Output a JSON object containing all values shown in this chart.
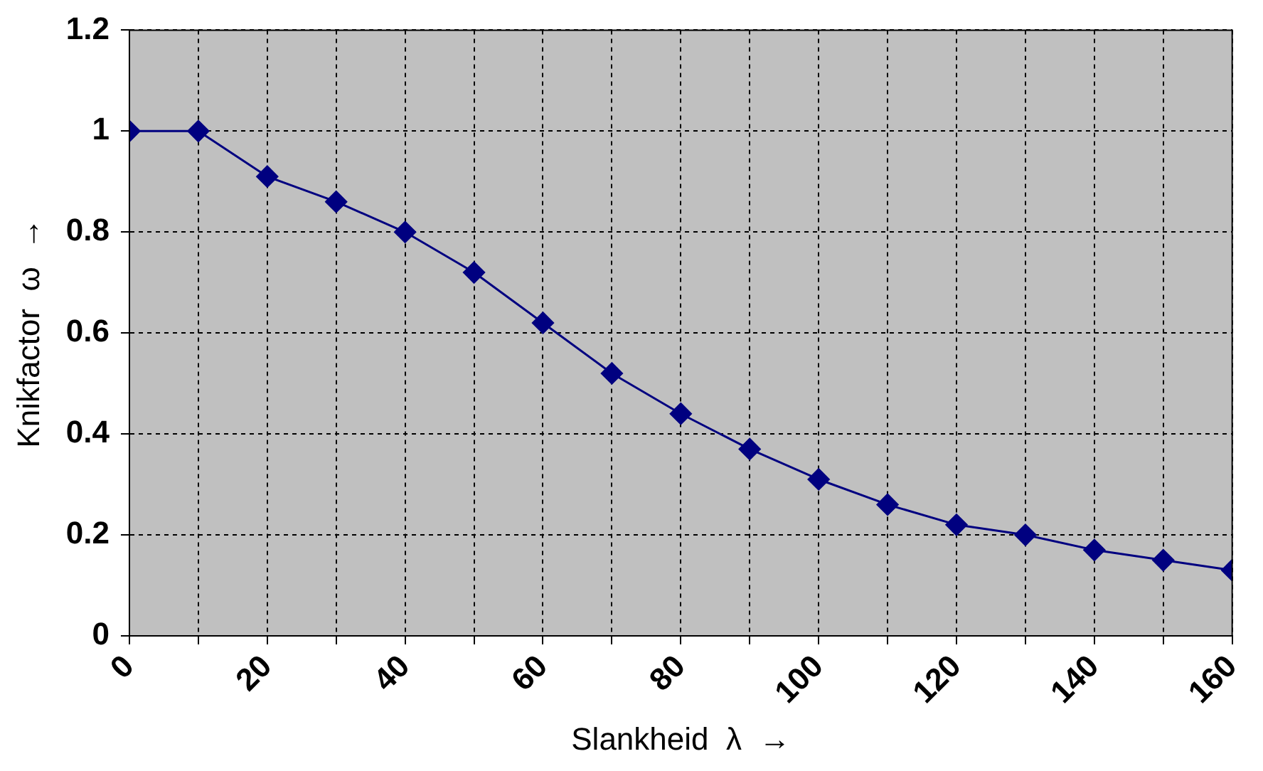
{
  "chart_data": {
    "type": "line",
    "xlabel": "Slankheid  λ  →",
    "ylabel": "Knikfactor  ω  →",
    "x": [
      0,
      10,
      20,
      30,
      40,
      50,
      60,
      70,
      80,
      90,
      100,
      110,
      120,
      130,
      140,
      150,
      160
    ],
    "series": [
      {
        "color": "#000080",
        "values": [
          1.0,
          1.0,
          0.91,
          0.86,
          0.8,
          0.72,
          0.62,
          0.52,
          0.44,
          0.37,
          0.31,
          0.26,
          0.22,
          0.2,
          0.17,
          0.15,
          0.13
        ]
      }
    ],
    "xlim": [
      0,
      160
    ],
    "xticks": [
      0,
      {
        "value": 10,
        "label": null
      },
      20,
      {
        "value": 30,
        "label": null
      },
      40,
      {
        "value": 50,
        "label": null
      },
      60,
      {
        "value": 70,
        "label": null
      },
      80,
      {
        "value": 90,
        "label": null
      },
      100,
      {
        "value": 110,
        "label": null
      },
      120,
      {
        "value": 130,
        "label": null
      },
      140,
      {
        "value": 150,
        "label": null
      },
      160
    ],
    "ylim": [
      0,
      1.2
    ],
    "yticks": [
      0,
      0.2,
      0.4,
      0.6,
      0.8,
      1,
      1.2
    ],
    "grid": true,
    "legend": false,
    "marker": "diamond",
    "line_style": "solid"
  }
}
